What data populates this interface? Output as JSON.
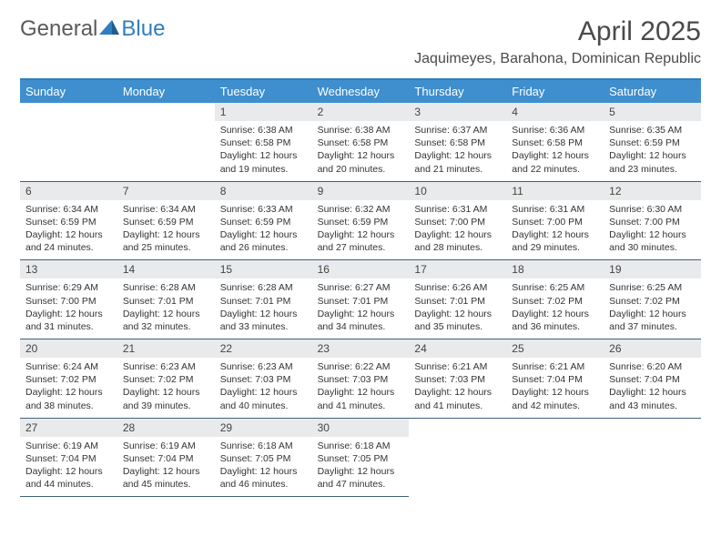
{
  "brand": {
    "word1": "General",
    "word2": "Blue"
  },
  "title": "April 2025",
  "location": "Jaquimeyes, Barahona, Dominican Republic",
  "colors": {
    "header_bg": "#3f8ecd",
    "header_text": "#ffffff",
    "daynum_bg": "#e9eaec",
    "border": "#406080",
    "accent": "#2f7ec0",
    "text": "#333333",
    "title_text": "#4a4a4a",
    "background": "#ffffff"
  },
  "layout": {
    "columns": 7,
    "rows": 5,
    "leading_blanks": 2,
    "fonts": {
      "title_size": 30,
      "location_size": 16,
      "header_size": 13,
      "body_size": 10.5
    }
  },
  "day_headers": [
    "Sunday",
    "Monday",
    "Tuesday",
    "Wednesday",
    "Thursday",
    "Friday",
    "Saturday"
  ],
  "days": [
    {
      "num": "1",
      "sunrise": "Sunrise: 6:38 AM",
      "sunset": "Sunset: 6:58 PM",
      "daylight": "Daylight: 12 hours and 19 minutes."
    },
    {
      "num": "2",
      "sunrise": "Sunrise: 6:38 AM",
      "sunset": "Sunset: 6:58 PM",
      "daylight": "Daylight: 12 hours and 20 minutes."
    },
    {
      "num": "3",
      "sunrise": "Sunrise: 6:37 AM",
      "sunset": "Sunset: 6:58 PM",
      "daylight": "Daylight: 12 hours and 21 minutes."
    },
    {
      "num": "4",
      "sunrise": "Sunrise: 6:36 AM",
      "sunset": "Sunset: 6:58 PM",
      "daylight": "Daylight: 12 hours and 22 minutes."
    },
    {
      "num": "5",
      "sunrise": "Sunrise: 6:35 AM",
      "sunset": "Sunset: 6:59 PM",
      "daylight": "Daylight: 12 hours and 23 minutes."
    },
    {
      "num": "6",
      "sunrise": "Sunrise: 6:34 AM",
      "sunset": "Sunset: 6:59 PM",
      "daylight": "Daylight: 12 hours and 24 minutes."
    },
    {
      "num": "7",
      "sunrise": "Sunrise: 6:34 AM",
      "sunset": "Sunset: 6:59 PM",
      "daylight": "Daylight: 12 hours and 25 minutes."
    },
    {
      "num": "8",
      "sunrise": "Sunrise: 6:33 AM",
      "sunset": "Sunset: 6:59 PM",
      "daylight": "Daylight: 12 hours and 26 minutes."
    },
    {
      "num": "9",
      "sunrise": "Sunrise: 6:32 AM",
      "sunset": "Sunset: 6:59 PM",
      "daylight": "Daylight: 12 hours and 27 minutes."
    },
    {
      "num": "10",
      "sunrise": "Sunrise: 6:31 AM",
      "sunset": "Sunset: 7:00 PM",
      "daylight": "Daylight: 12 hours and 28 minutes."
    },
    {
      "num": "11",
      "sunrise": "Sunrise: 6:31 AM",
      "sunset": "Sunset: 7:00 PM",
      "daylight": "Daylight: 12 hours and 29 minutes."
    },
    {
      "num": "12",
      "sunrise": "Sunrise: 6:30 AM",
      "sunset": "Sunset: 7:00 PM",
      "daylight": "Daylight: 12 hours and 30 minutes."
    },
    {
      "num": "13",
      "sunrise": "Sunrise: 6:29 AM",
      "sunset": "Sunset: 7:00 PM",
      "daylight": "Daylight: 12 hours and 31 minutes."
    },
    {
      "num": "14",
      "sunrise": "Sunrise: 6:28 AM",
      "sunset": "Sunset: 7:01 PM",
      "daylight": "Daylight: 12 hours and 32 minutes."
    },
    {
      "num": "15",
      "sunrise": "Sunrise: 6:28 AM",
      "sunset": "Sunset: 7:01 PM",
      "daylight": "Daylight: 12 hours and 33 minutes."
    },
    {
      "num": "16",
      "sunrise": "Sunrise: 6:27 AM",
      "sunset": "Sunset: 7:01 PM",
      "daylight": "Daylight: 12 hours and 34 minutes."
    },
    {
      "num": "17",
      "sunrise": "Sunrise: 6:26 AM",
      "sunset": "Sunset: 7:01 PM",
      "daylight": "Daylight: 12 hours and 35 minutes."
    },
    {
      "num": "18",
      "sunrise": "Sunrise: 6:25 AM",
      "sunset": "Sunset: 7:02 PM",
      "daylight": "Daylight: 12 hours and 36 minutes."
    },
    {
      "num": "19",
      "sunrise": "Sunrise: 6:25 AM",
      "sunset": "Sunset: 7:02 PM",
      "daylight": "Daylight: 12 hours and 37 minutes."
    },
    {
      "num": "20",
      "sunrise": "Sunrise: 6:24 AM",
      "sunset": "Sunset: 7:02 PM",
      "daylight": "Daylight: 12 hours and 38 minutes."
    },
    {
      "num": "21",
      "sunrise": "Sunrise: 6:23 AM",
      "sunset": "Sunset: 7:02 PM",
      "daylight": "Daylight: 12 hours and 39 minutes."
    },
    {
      "num": "22",
      "sunrise": "Sunrise: 6:23 AM",
      "sunset": "Sunset: 7:03 PM",
      "daylight": "Daylight: 12 hours and 40 minutes."
    },
    {
      "num": "23",
      "sunrise": "Sunrise: 6:22 AM",
      "sunset": "Sunset: 7:03 PM",
      "daylight": "Daylight: 12 hours and 41 minutes."
    },
    {
      "num": "24",
      "sunrise": "Sunrise: 6:21 AM",
      "sunset": "Sunset: 7:03 PM",
      "daylight": "Daylight: 12 hours and 41 minutes."
    },
    {
      "num": "25",
      "sunrise": "Sunrise: 6:21 AM",
      "sunset": "Sunset: 7:04 PM",
      "daylight": "Daylight: 12 hours and 42 minutes."
    },
    {
      "num": "26",
      "sunrise": "Sunrise: 6:20 AM",
      "sunset": "Sunset: 7:04 PM",
      "daylight": "Daylight: 12 hours and 43 minutes."
    },
    {
      "num": "27",
      "sunrise": "Sunrise: 6:19 AM",
      "sunset": "Sunset: 7:04 PM",
      "daylight": "Daylight: 12 hours and 44 minutes."
    },
    {
      "num": "28",
      "sunrise": "Sunrise: 6:19 AM",
      "sunset": "Sunset: 7:04 PM",
      "daylight": "Daylight: 12 hours and 45 minutes."
    },
    {
      "num": "29",
      "sunrise": "Sunrise: 6:18 AM",
      "sunset": "Sunset: 7:05 PM",
      "daylight": "Daylight: 12 hours and 46 minutes."
    },
    {
      "num": "30",
      "sunrise": "Sunrise: 6:18 AM",
      "sunset": "Sunset: 7:05 PM",
      "daylight": "Daylight: 12 hours and 47 minutes."
    }
  ]
}
